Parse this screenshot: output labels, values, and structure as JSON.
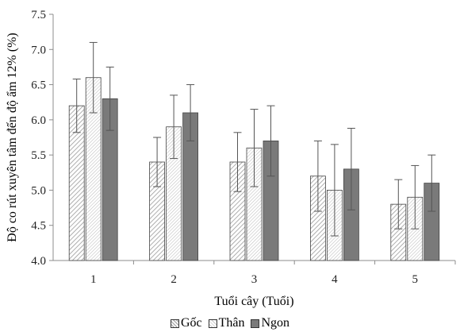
{
  "chart_data": {
    "type": "bar",
    "xlabel": "Tuổi cây (Tuổi)",
    "ylabel": "Độ co rút xuyên tâm đến độ ẩm 12% (%)",
    "categories": [
      "1",
      "2",
      "3",
      "4",
      "5"
    ],
    "ylim": [
      4.0,
      7.5
    ],
    "yticks": [
      "4.0",
      "4.5",
      "5.0",
      "5.5",
      "6.0",
      "6.5",
      "7.0",
      "7.5"
    ],
    "legend_position": "bottom",
    "grid": false,
    "error_bars": true,
    "series": [
      {
        "name": "Gốc",
        "values": [
          6.2,
          5.4,
          5.4,
          5.2,
          4.8
        ],
        "errors": [
          0.38,
          0.35,
          0.42,
          0.5,
          0.35
        ],
        "pattern": "hatch-light",
        "color": "#b0b0b0"
      },
      {
        "name": "Thân",
        "values": [
          6.6,
          5.9,
          5.6,
          5.0,
          4.9
        ],
        "errors": [
          0.5,
          0.45,
          0.55,
          0.65,
          0.45
        ],
        "pattern": "hatch-fine",
        "color": "#c8c8c8"
      },
      {
        "name": "Ngon",
        "values": [
          6.3,
          6.1,
          5.7,
          5.3,
          5.1
        ],
        "errors": [
          0.45,
          0.4,
          0.5,
          0.58,
          0.4
        ],
        "pattern": "solid",
        "color": "#7a7a7a"
      }
    ]
  }
}
